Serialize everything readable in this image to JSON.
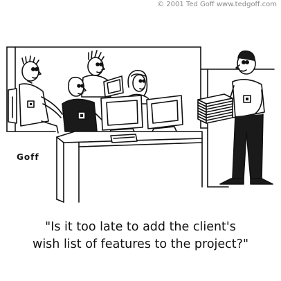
{
  "copyright": "© 2001 Ted Goff www.tedgoff.com",
  "signature": "Goff",
  "caption": {
    "line1": "\"Is it too late to add the client's",
    "line2": "wish list of features to the project?\""
  }
}
